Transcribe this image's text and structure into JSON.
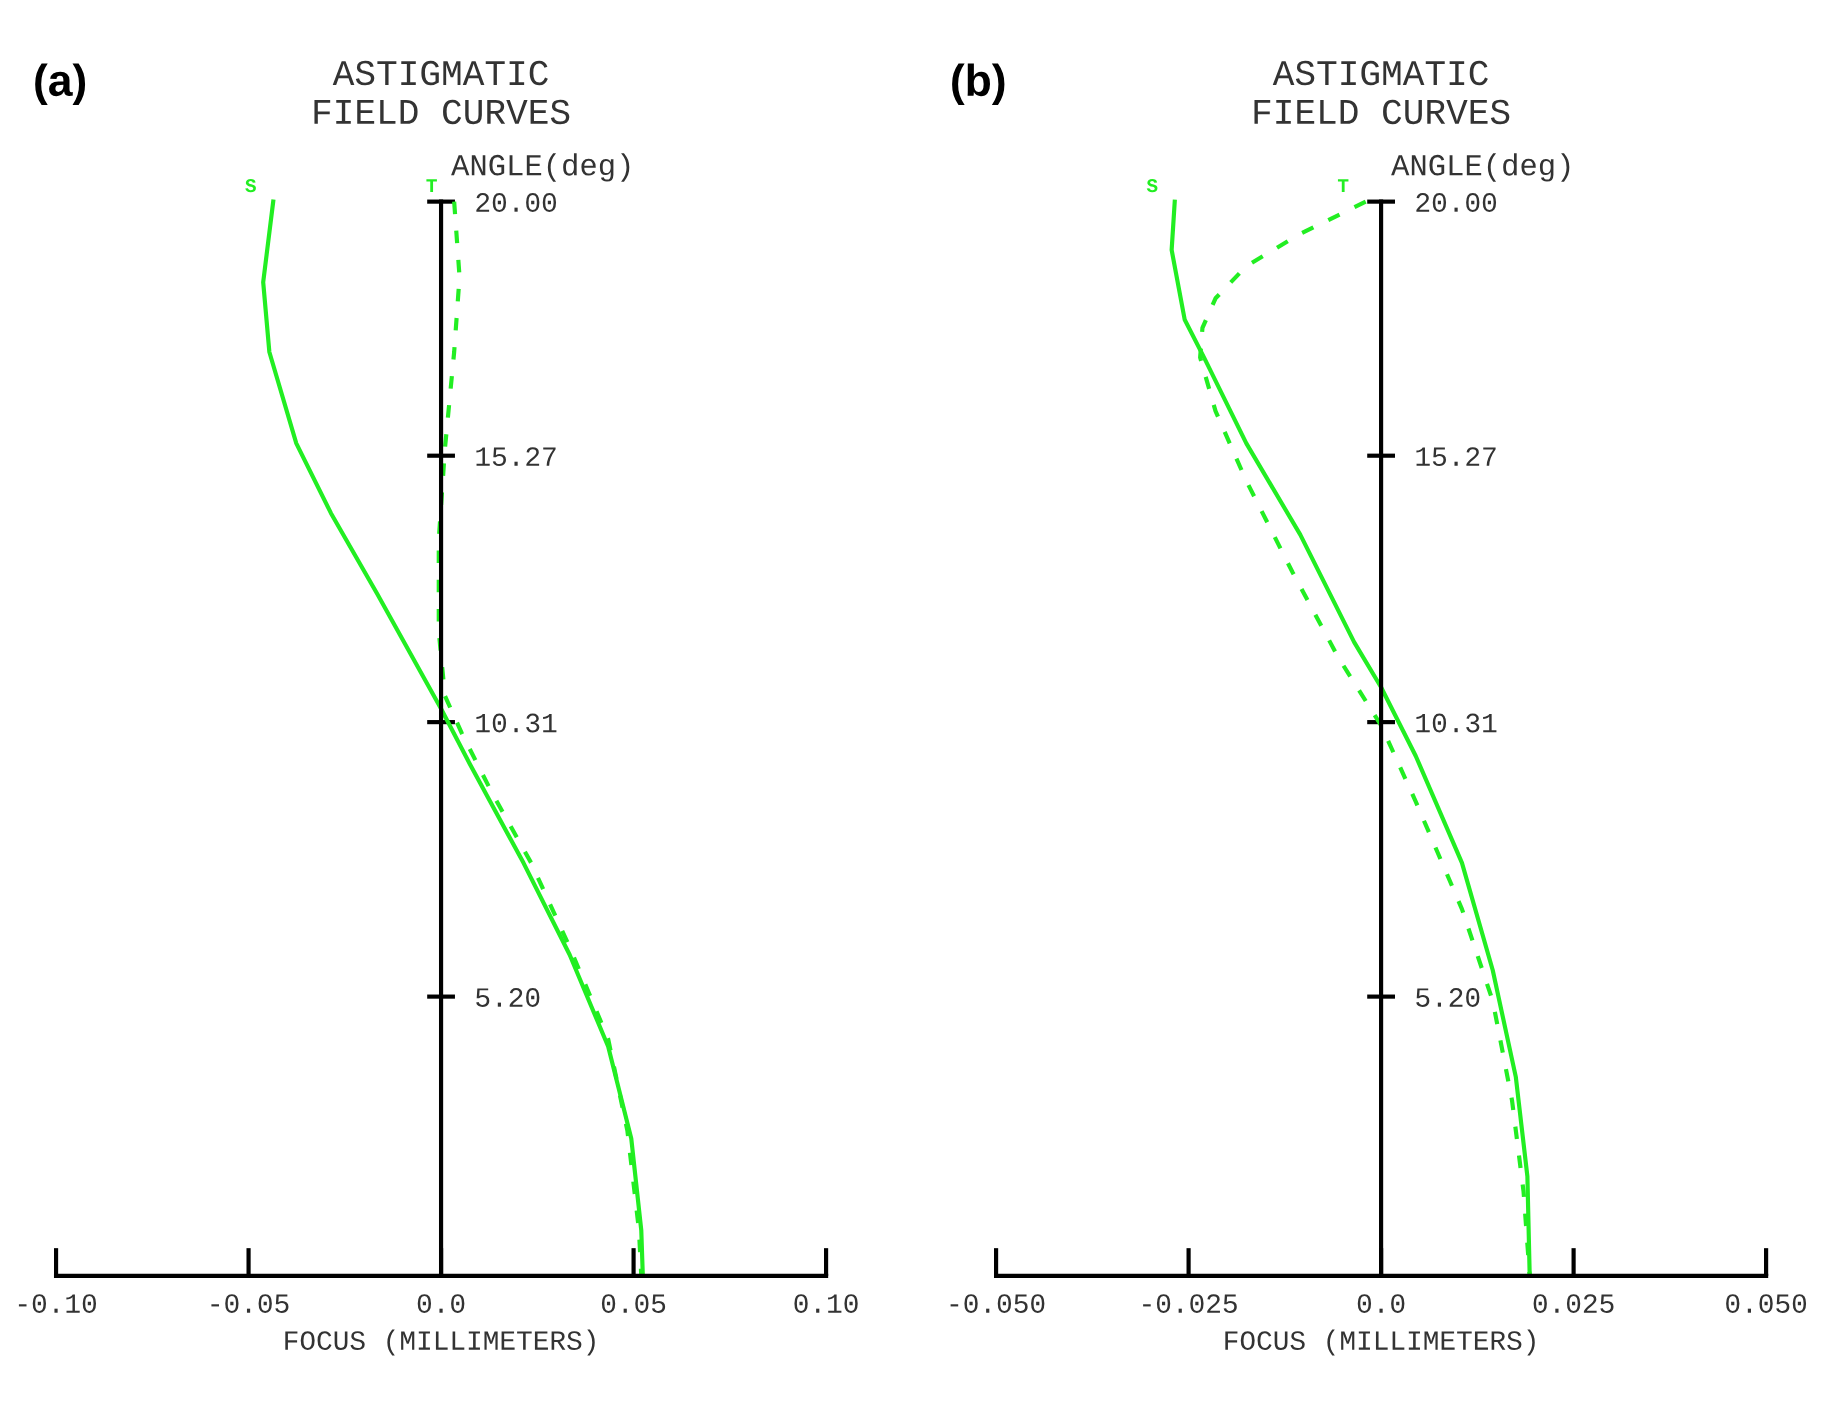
{
  "chart_data": [
    {
      "type": "line",
      "title": "ASTIGMATIC\nFIELD CURVES",
      "annotations": [
        "(a)"
      ],
      "xlabel": "FOCUS (MILLIMETERS)",
      "ylabel": "ANGLE(deg)",
      "xlim": [
        -0.1,
        0.1
      ],
      "ylim": [
        0,
        20
      ],
      "xticks": [
        {
          "value": -0.1,
          "label": "-0.10"
        },
        {
          "value": -0.05,
          "label": "-0.05"
        },
        {
          "value": 0,
          "label": "0.0"
        },
        {
          "value": 0.05,
          "label": "0.05"
        },
        {
          "value": 0.1,
          "label": "0.10"
        }
      ],
      "yticks": [
        {
          "value": 5.2,
          "label": "5.20"
        },
        {
          "value": 10.31,
          "label": "10.31"
        },
        {
          "value": 15.27,
          "label": "15.27"
        },
        {
          "value": 20,
          "label": "20.00"
        }
      ],
      "grid": false,
      "legend": false,
      "series": [
        {
          "name": "S",
          "color": "#22ee22",
          "line_style": "solid",
          "x": [
            -0.0436,
            -0.0462,
            -0.0446,
            -0.0376,
            -0.0286,
            -0.0166,
            0.0,
            0.0074,
            0.0214,
            0.0334,
            0.0434,
            0.0494,
            0.052,
            0.0524
          ],
          "values": [
            20,
            18.5,
            17.2,
            15.5,
            14.2,
            12.7,
            10.56,
            9.54,
            7.69,
            5.98,
            4.27,
            2.56,
            0.85,
            0
          ]
        },
        {
          "name": "T",
          "color": "#22ee22",
          "line_style": "dashed",
          "x": [
            0.0034,
            0.0048,
            0.0034,
            0.001,
            -0.0006,
            -0.0006,
            0.001,
            0.0054,
            0.0134,
            0.0234,
            0.0334,
            0.0434,
            0.0484,
            0.0514,
            0.052
          ],
          "values": [
            20,
            18.6,
            17.2,
            15.4,
            13.7,
            12.0,
            10.8,
            10.1,
            8.97,
            7.69,
            6.12,
            4.41,
            2.7,
            0.85,
            0
          ]
        }
      ]
    },
    {
      "type": "line",
      "title": "ASTIGMATIC\nFIELD CURVES",
      "annotations": [
        "(b)"
      ],
      "xlabel": "FOCUS (MILLIMETERS)",
      "ylabel": "ANGLE(deg)",
      "xlim": [
        -0.05,
        0.05
      ],
      "ylim": [
        0,
        20
      ],
      "xticks": [
        {
          "value": -0.05,
          "label": "-0.050"
        },
        {
          "value": -0.025,
          "label": "-0.025"
        },
        {
          "value": 0,
          "label": "0.0"
        },
        {
          "value": 0.025,
          "label": "0.025"
        },
        {
          "value": 0.05,
          "label": "0.050"
        }
      ],
      "yticks": [
        {
          "value": 5.2,
          "label": "5.20"
        },
        {
          "value": 10.31,
          "label": "10.31"
        },
        {
          "value": 15.27,
          "label": "15.27"
        },
        {
          "value": 20,
          "label": "20.00"
        }
      ],
      "grid": false,
      "legend": false,
      "series": [
        {
          "name": "S",
          "color": "#22ee22",
          "line_style": "solid",
          "x": [
            -0.0268,
            -0.0272,
            -0.0255,
            -0.023,
            -0.0175,
            -0.0105,
            -0.0035,
            0.0,
            0.0045,
            0.0105,
            0.0145,
            0.0175,
            0.019,
            0.0193
          ],
          "values": [
            20,
            19.1,
            17.8,
            17.1,
            15.5,
            13.8,
            11.8,
            10.96,
            9.68,
            7.69,
            5.69,
            3.7,
            1.85,
            0
          ]
        },
        {
          "name": "T",
          "color": "#22ee22",
          "line_style": "dashed",
          "x": [
            -0.002,
            -0.0105,
            -0.0175,
            -0.0215,
            -0.0232,
            -0.0235,
            -0.0215,
            -0.0175,
            -0.0115,
            -0.0055,
            0.0,
            0.0045,
            0.0105,
            0.0145,
            0.017,
            0.0185,
            0.0193
          ],
          "values": [
            20,
            19.4,
            18.8,
            18.2,
            17.65,
            17.1,
            16.1,
            14.8,
            13.1,
            11.5,
            10.25,
            8.83,
            6.83,
            5.12,
            3.27,
            1.57,
            0
          ]
        }
      ]
    }
  ]
}
